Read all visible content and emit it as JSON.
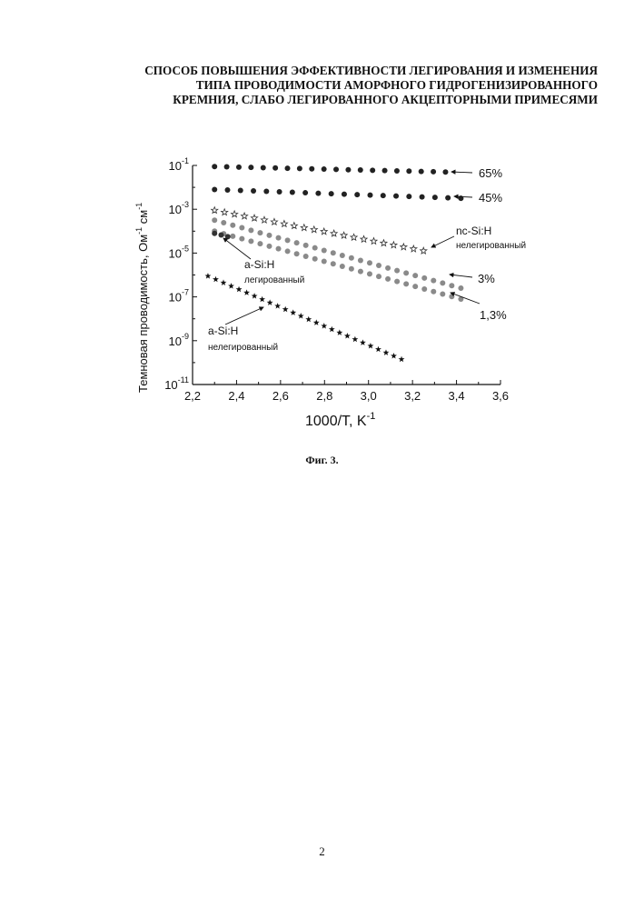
{
  "document": {
    "title_lines": [
      "СПОСОБ ПОВЫШЕНИЯ ЭФФЕКТИВНОСТИ ЛЕГИРОВАНИЯ И ИЗМЕНЕНИЯ",
      "ТИПА ПРОВОДИМОСТИ АМОРФНОГО ГИДРОГЕНИЗИРОВАННОГО",
      "КРЕМНИЯ, СЛАБО ЛЕГИРОВАННОГО АКЦЕПТОРНЫМИ ПРИМЕСЯМИ"
    ],
    "caption": "Фиг. 3.",
    "page_number": "2"
  },
  "chart_data": {
    "type": "scatter",
    "title": "",
    "xlabel": "1000/T, K",
    "xlabel_sup": "-1",
    "ylabel": "Темновая проводимость, Ом",
    "ylabel_sup1": "-1",
    "ylabel_mid": "см",
    "ylabel_sup2": "-1",
    "xlim": [
      2.2,
      3.6
    ],
    "ylim_log10": [
      -11,
      -1
    ],
    "y_scale": "log",
    "x_ticks": [
      "2,2",
      "2,4",
      "2,6",
      "2,8",
      "3,0",
      "3,2",
      "3,4",
      "3,6"
    ],
    "y_tick_exponents": [
      "-1",
      "-3",
      "-5",
      "-7",
      "-9",
      "-11"
    ],
    "grid": false,
    "series": [
      {
        "label": "65%",
        "marker": "dot",
        "color": "#222222",
        "x_start": 2.3,
        "x_end": 3.35,
        "log_start": -1.05,
        "log_end": -1.3,
        "count": 20
      },
      {
        "label": "45%",
        "marker": "dot",
        "color": "#222222",
        "x_start": 2.3,
        "x_end": 3.42,
        "log_start": -2.1,
        "log_end": -2.5,
        "count": 20
      },
      {
        "label": "nc-Si:H",
        "label2": "нелегированный",
        "marker": "star-open",
        "color": "#333333",
        "x_start": 2.3,
        "x_end": 3.25,
        "log_start": -3.05,
        "log_end": -4.9,
        "count": 22
      },
      {
        "label": "3%",
        "marker": "dot",
        "color": "#8a8a8a",
        "x_start": 2.3,
        "x_end": 3.42,
        "log_start": -3.5,
        "log_end": -6.6,
        "count": 28
      },
      {
        "label": "1,3%",
        "marker": "dot",
        "color": "#8a8a8a",
        "x_start": 2.3,
        "x_end": 3.42,
        "log_start": -4.0,
        "log_end": -7.1,
        "count": 28
      },
      {
        "label": "a-Si:H",
        "label2": "легированный",
        "marker": "dot",
        "color": "#333333",
        "x_start": 2.3,
        "x_end": 2.36,
        "log_start": -4.1,
        "log_end": -4.25,
        "count": 3
      },
      {
        "label": "a-Si:H",
        "label2": "нелегированный",
        "marker": "star",
        "color": "#111111",
        "x_start": 2.27,
        "x_end": 3.15,
        "log_start": -6.05,
        "log_end": -9.85,
        "count": 26
      }
    ]
  }
}
